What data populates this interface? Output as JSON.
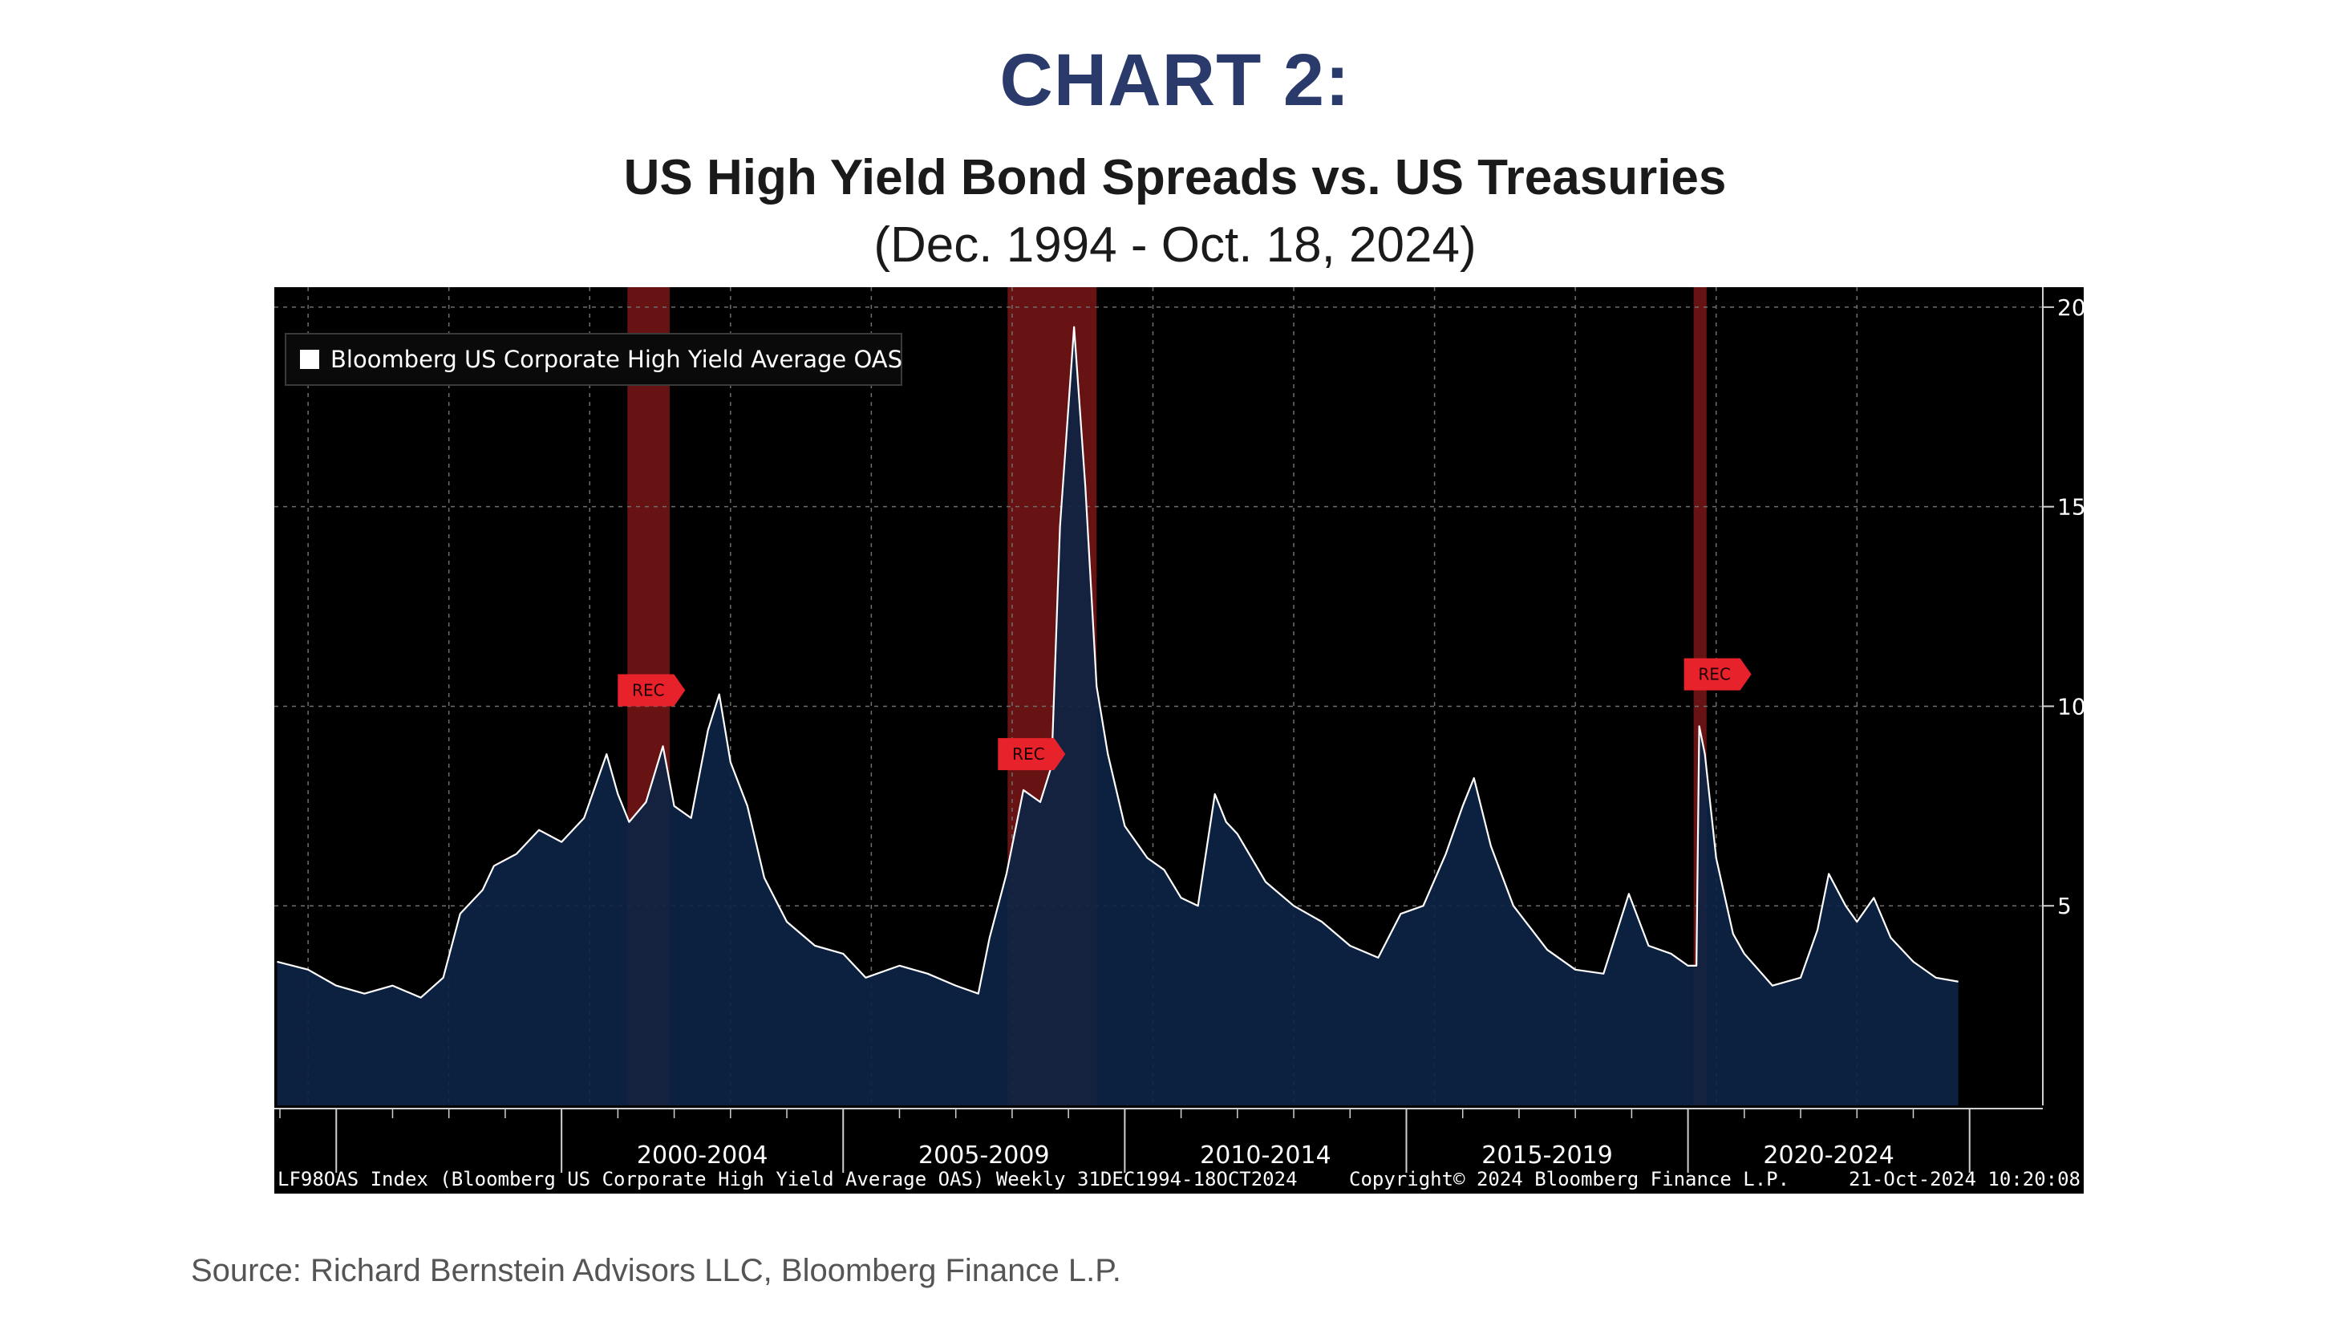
{
  "header": {
    "headline": "CHART 2:",
    "title": "US High Yield Bond Spreads vs. US Treasuries",
    "subtitle": "(Dec. 1994 - Oct. 18, 2024)"
  },
  "footer": {
    "source": "Source: Richard Bernstein Advisors LLC, Bloomberg Finance L.P."
  },
  "terminal": {
    "ticker_info": "LF98OAS Index (Bloomberg US Corporate High Yield Average OAS)  Weekly 31DEC1994-18OCT2024",
    "copyright": "Copyright© 2024 Bloomberg Finance L.P.",
    "timestamp": "21-Oct-2024 10:20:08",
    "recession_label": "REC"
  },
  "colors": {
    "background": "#000000",
    "area_fill": "#0d2444",
    "line": "#ffffff",
    "recession_band": "#8b1a1a",
    "recession_marker": "#e8222b",
    "headline": "#2a3a6b",
    "grid": "#6e6e6e"
  },
  "chart_data": {
    "type": "area",
    "title": "US High Yield Bond Spreads vs. US Treasuries",
    "series": [
      {
        "name": "Bloomberg US Corporate High Yield Average OAS",
        "x": [
          1994.95,
          1995.5,
          1996.0,
          1996.5,
          1997.0,
          1997.5,
          1997.9,
          1998.2,
          1998.6,
          1998.8,
          1999.2,
          1999.6,
          2000.0,
          2000.4,
          2000.8,
          2001.0,
          2001.2,
          2001.5,
          2001.8,
          2002.0,
          2002.3,
          2002.6,
          2002.8,
          2003.0,
          2003.3,
          2003.6,
          2004.0,
          2004.5,
          2005.0,
          2005.4,
          2006.0,
          2006.5,
          2007.0,
          2007.4,
          2007.6,
          2007.9,
          2008.2,
          2008.5,
          2008.7,
          2008.85,
          2008.95,
          2009.1,
          2009.3,
          2009.5,
          2009.7,
          2010.0,
          2010.4,
          2010.7,
          2011.0,
          2011.3,
          2011.6,
          2011.8,
          2012.0,
          2012.5,
          2013.0,
          2013.5,
          2014.0,
          2014.5,
          2014.9,
          2015.3,
          2015.7,
          2016.0,
          2016.2,
          2016.5,
          2016.9,
          2017.5,
          2018.0,
          2018.5,
          2018.95,
          2019.3,
          2019.7,
          2020.0,
          2020.15,
          2020.2,
          2020.3,
          2020.5,
          2020.8,
          2021.0,
          2021.5,
          2022.0,
          2022.3,
          2022.5,
          2022.8,
          2023.0,
          2023.3,
          2023.6,
          2024.0,
          2024.4,
          2024.8
        ],
        "values": [
          3.6,
          3.4,
          3.0,
          2.8,
          3.0,
          2.7,
          3.2,
          4.8,
          5.4,
          6.0,
          6.3,
          6.9,
          6.6,
          7.2,
          8.8,
          7.8,
          7.1,
          7.6,
          9.0,
          7.5,
          7.2,
          9.4,
          10.3,
          8.6,
          7.5,
          5.7,
          4.6,
          4.0,
          3.8,
          3.2,
          3.5,
          3.3,
          3.0,
          2.8,
          4.2,
          5.8,
          7.9,
          7.6,
          8.5,
          14.5,
          16.5,
          19.5,
          15.5,
          10.5,
          8.8,
          7.0,
          6.2,
          5.9,
          5.2,
          5.0,
          7.8,
          7.1,
          6.8,
          5.6,
          5.0,
          4.6,
          4.0,
          3.7,
          4.8,
          5.0,
          6.3,
          7.5,
          8.2,
          6.5,
          5.0,
          3.9,
          3.4,
          3.3,
          5.3,
          4.0,
          3.8,
          3.5,
          3.5,
          9.5,
          8.8,
          6.2,
          4.3,
          3.8,
          3.0,
          3.2,
          4.4,
          5.8,
          5.0,
          4.6,
          5.2,
          4.2,
          3.6,
          3.2,
          3.1
        ]
      }
    ],
    "recessions": [
      [
        2001.17,
        2001.92
      ],
      [
        2007.92,
        2009.5
      ],
      [
        2020.1,
        2020.33
      ]
    ],
    "xlim": [
      1994.9,
      2026.3
    ],
    "ylim": [
      0,
      20.5
    ],
    "x_tick_labels": [
      {
        "label": "2000-2004",
        "x": 2002.5
      },
      {
        "label": "2005-2009",
        "x": 2007.5
      },
      {
        "label": "2010-2014",
        "x": 2012.5
      },
      {
        "label": "2015-2019",
        "x": 2017.5
      },
      {
        "label": "2020-2024",
        "x": 2022.5
      }
    ],
    "x_group_boundaries": [
      1996.0,
      2000.0,
      2005.0,
      2010.0,
      2015.0,
      2020.0,
      2025.0
    ],
    "y_ticks": [
      5,
      10,
      15,
      20
    ],
    "grid": true,
    "legend_position": "top-left"
  }
}
